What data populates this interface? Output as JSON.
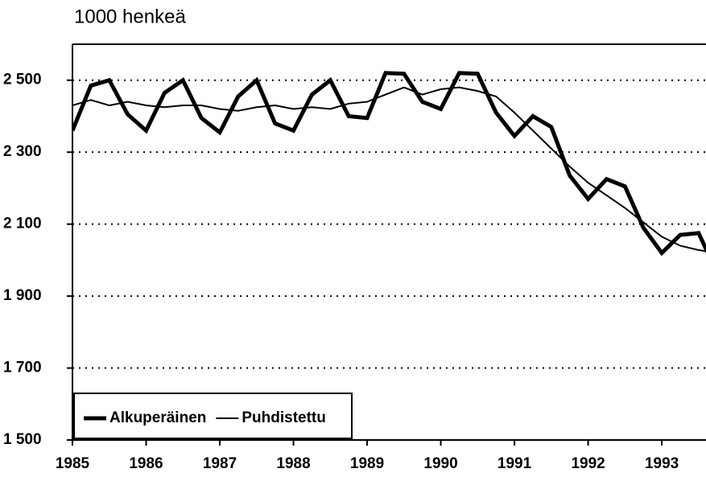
{
  "chart_data": {
    "type": "line",
    "title": "1000 henkeä",
    "x": [
      1985,
      1985.25,
      1985.5,
      1985.75,
      1986,
      1986.25,
      1986.5,
      1986.75,
      1987,
      1987.25,
      1987.5,
      1987.75,
      1988,
      1988.25,
      1988.5,
      1988.75,
      1989,
      1989.25,
      1989.5,
      1989.75,
      1990,
      1990.25,
      1990.5,
      1990.75,
      1991,
      1991.25,
      1991.5,
      1991.75,
      1992,
      1992.25,
      1992.5,
      1992.75,
      1993,
      1993.25,
      1993.5,
      1993.75
    ],
    "series": [
      {
        "name": "Alkuperäinen",
        "color": "#000000",
        "width": 5,
        "values": [
          2360,
          2485,
          2500,
          2405,
          2360,
          2465,
          2500,
          2395,
          2355,
          2455,
          2500,
          2380,
          2360,
          2460,
          2500,
          2400,
          2395,
          2520,
          2518,
          2440,
          2420,
          2520,
          2518,
          2410,
          2345,
          2400,
          2370,
          2235,
          2170,
          2225,
          2205,
          2090,
          2020,
          2070,
          2075,
          1965
        ]
      },
      {
        "name": "Puhdistettu",
        "color": "#000000",
        "width": 2,
        "values": [
          2430,
          2445,
          2430,
          2440,
          2430,
          2425,
          2430,
          2430,
          2420,
          2415,
          2425,
          2430,
          2420,
          2425,
          2420,
          2435,
          2440,
          2460,
          2480,
          2460,
          2475,
          2480,
          2470,
          2455,
          2410,
          2360,
          2310,
          2260,
          2215,
          2180,
          2145,
          2105,
          2065,
          2040,
          2028,
          2020
        ]
      }
    ],
    "xlim": [
      1985,
      1993.6
    ],
    "xticks": [
      1985,
      1986,
      1987,
      1988,
      1989,
      1990,
      1991,
      1992,
      1993
    ],
    "ylim": [
      1500,
      2600
    ],
    "yticks": [
      {
        "value": 1500,
        "label": "1 500"
      },
      {
        "value": 1700,
        "label": "1 700"
      },
      {
        "value": 1900,
        "label": "1 900"
      },
      {
        "value": 2100,
        "label": "2 100"
      },
      {
        "value": 2300,
        "label": "2 300"
      },
      {
        "value": 2500,
        "label": "2 500"
      }
    ],
    "grid": true,
    "legend": "lower left"
  }
}
